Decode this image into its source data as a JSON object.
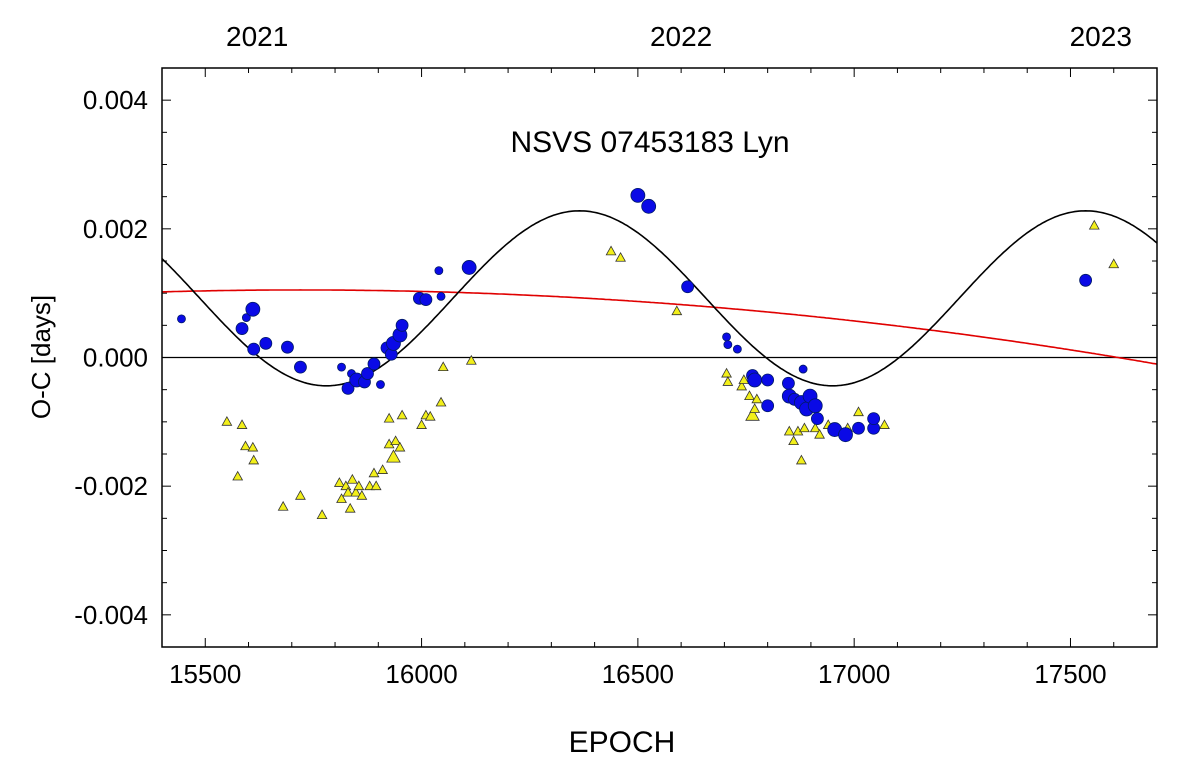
{
  "chart_data": {
    "type": "scatter",
    "title": "NSVS 07453183 Lyn",
    "xlabel": "EPOCH",
    "ylabel": "O-C [days]",
    "xlim": [
      15400,
      17700
    ],
    "ylim": [
      -0.0045,
      0.0045
    ],
    "x_ticks": [
      15500,
      16000,
      16500,
      17000,
      17500
    ],
    "x_tick_labels": [
      "15500",
      "16000",
      "16500",
      "17000",
      "17500"
    ],
    "y_ticks": [
      0.004,
      0.002,
      0.0,
      -0.002,
      -0.004
    ],
    "y_tick_labels": [
      "0.004",
      "0.002",
      "0.000",
      "-0.002",
      "-0.004"
    ],
    "top_axis": {
      "epochs": [
        15620,
        16600,
        17570
      ],
      "labels": [
        "2021",
        "2022",
        "2023"
      ]
    },
    "zero_line": 0.0,
    "colors": {
      "primary_points": "#0a0ae6",
      "secondary_points": "#f2ef1a",
      "fit_curve": "#000000",
      "trend_curve": "#e00000"
    },
    "series": [
      {
        "kind": "circles",
        "points": [
          [
            15445,
            0.0006,
            4
          ],
          [
            15585,
            0.00045,
            6
          ],
          [
            15595,
            0.00062,
            4
          ],
          [
            15610,
            0.00075,
            7
          ],
          [
            15612,
            0.00013,
            6
          ],
          [
            15640,
            0.00022,
            6
          ],
          [
            15690,
            0.00016,
            6
          ],
          [
            15720,
            -0.00015,
            6
          ],
          [
            15815,
            -0.00015,
            4
          ],
          [
            15830,
            -0.00048,
            6
          ],
          [
            15838,
            -0.00025,
            4
          ],
          [
            15850,
            -0.00035,
            7
          ],
          [
            15868,
            -0.00038,
            6
          ],
          [
            15875,
            -0.00025,
            6
          ],
          [
            15890,
            -0.0001,
            6
          ],
          [
            15905,
            -0.00042,
            4
          ],
          [
            15920,
            0.00015,
            6
          ],
          [
            15930,
            5e-05,
            6
          ],
          [
            15935,
            0.00022,
            7
          ],
          [
            15950,
            0.00035,
            7
          ],
          [
            15955,
            0.0005,
            6
          ],
          [
            15995,
            0.00092,
            6
          ],
          [
            16010,
            0.0009,
            6
          ],
          [
            16040,
            0.00135,
            4
          ],
          [
            16045,
            0.00095,
            4
          ],
          [
            16110,
            0.0014,
            7
          ],
          [
            16500,
            0.00252,
            7
          ],
          [
            16525,
            0.00235,
            7
          ],
          [
            16615,
            0.0011,
            6
          ],
          [
            16705,
            0.00032,
            4
          ],
          [
            16708,
            0.0002,
            4
          ],
          [
            16730,
            0.00013,
            4
          ],
          [
            16765,
            -0.00028,
            6
          ],
          [
            16770,
            -0.00035,
            7
          ],
          [
            16800,
            -0.00035,
            6
          ],
          [
            16800,
            -0.00075,
            6
          ],
          [
            16848,
            -0.0004,
            6
          ],
          [
            16850,
            -0.0006,
            7
          ],
          [
            16862,
            -0.00065,
            6
          ],
          [
            16878,
            -0.0007,
            7
          ],
          [
            16882,
            -0.00018,
            4
          ],
          [
            16890,
            -0.0008,
            7
          ],
          [
            16898,
            -0.0006,
            7
          ],
          [
            16910,
            -0.00075,
            7
          ],
          [
            16915,
            -0.00095,
            6
          ],
          [
            16955,
            -0.00112,
            7
          ],
          [
            16980,
            -0.0012,
            7
          ],
          [
            17010,
            -0.0011,
            6
          ],
          [
            17045,
            -0.0011,
            6
          ],
          [
            17045,
            -0.00095,
            6
          ],
          [
            17535,
            0.0012,
            6
          ]
        ]
      },
      {
        "kind": "triangles",
        "points": [
          [
            15550,
            -0.001,
            5
          ],
          [
            15575,
            -0.00185,
            5
          ],
          [
            15585,
            -0.00105,
            5
          ],
          [
            15593,
            -0.00138,
            5
          ],
          [
            15610,
            -0.0014,
            5
          ],
          [
            15612,
            -0.0016,
            5
          ],
          [
            15680,
            -0.00232,
            5
          ],
          [
            15720,
            -0.00215,
            5
          ],
          [
            15770,
            -0.00245,
            5
          ],
          [
            15810,
            -0.00195,
            5
          ],
          [
            15815,
            -0.0022,
            5
          ],
          [
            15825,
            -0.002,
            5
          ],
          [
            15830,
            -0.0021,
            5
          ],
          [
            15835,
            -0.00235,
            5
          ],
          [
            15840,
            -0.0019,
            5
          ],
          [
            15848,
            -0.0021,
            5
          ],
          [
            15855,
            -0.002,
            5
          ],
          [
            15862,
            -0.00215,
            5
          ],
          [
            15880,
            -0.002,
            5
          ],
          [
            15890,
            -0.0018,
            5
          ],
          [
            15895,
            -0.002,
            5
          ],
          [
            15910,
            -0.00175,
            5
          ],
          [
            15925,
            -0.00135,
            5
          ],
          [
            15925,
            -0.00095,
            5
          ],
          [
            15935,
            -0.00155,
            7
          ],
          [
            15940,
            -0.0013,
            5
          ],
          [
            15950,
            -0.0014,
            5
          ],
          [
            15955,
            -0.0009,
            5
          ],
          [
            16000,
            -0.00105,
            5
          ],
          [
            16010,
            -0.0009,
            5
          ],
          [
            16020,
            -0.00092,
            5
          ],
          [
            16045,
            -0.0007,
            5
          ],
          [
            16050,
            -0.00015,
            5
          ],
          [
            16115,
            -5e-05,
            5
          ],
          [
            16438,
            0.00165,
            5
          ],
          [
            16460,
            0.00155,
            5
          ],
          [
            16590,
            0.00072,
            5
          ],
          [
            16705,
            -0.00025,
            5
          ],
          [
            16708,
            -0.00038,
            5
          ],
          [
            16740,
            -0.00045,
            5
          ],
          [
            16745,
            -0.00035,
            5
          ],
          [
            16758,
            -0.0006,
            5
          ],
          [
            16765,
            -0.0009,
            7
          ],
          [
            16770,
            -0.0008,
            5
          ],
          [
            16775,
            -0.00065,
            5
          ],
          [
            16800,
            -0.00075,
            5
          ],
          [
            16850,
            -0.00115,
            5
          ],
          [
            16860,
            -0.0013,
            5
          ],
          [
            16870,
            -0.00115,
            5
          ],
          [
            16878,
            -0.0016,
            5
          ],
          [
            16885,
            -0.0011,
            5
          ],
          [
            16910,
            -0.0011,
            5
          ],
          [
            16920,
            -0.0012,
            5
          ],
          [
            16940,
            -0.00105,
            5
          ],
          [
            16985,
            -0.0011,
            5
          ],
          [
            17010,
            -0.00085,
            5
          ],
          [
            17070,
            -0.00105,
            5
          ],
          [
            17555,
            0.00205,
            5
          ],
          [
            17600,
            0.00145,
            5
          ]
        ]
      },
      {
        "kind": "fit-curve",
        "model": "sine",
        "offset": 0.00092,
        "amplitude": 0.00136,
        "period": 1170,
        "phase_epoch": 16365
      },
      {
        "kind": "trend-curve",
        "model": "quadratic",
        "vertex_epoch": 15720,
        "vertex_value": 0.00105,
        "curvature": -2.94e-10
      }
    ]
  }
}
